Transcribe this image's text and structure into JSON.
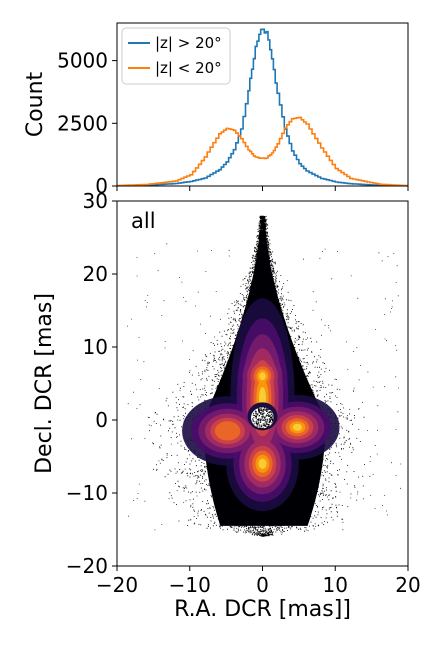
{
  "chart_data": [
    {
      "type": "line",
      "panel": "top",
      "ylabel": "Count",
      "ylim": [
        0,
        6500
      ],
      "xlim": [
        -20,
        20
      ],
      "yticks": [
        0,
        2500,
        5000
      ],
      "ytick_labels": [
        "0",
        "2500",
        "5000"
      ],
      "grid": false,
      "legend_position": "top-left",
      "x": [
        -20,
        -16,
        -12,
        -10,
        -8,
        -6,
        -5,
        -4,
        -3,
        -2,
        -1.5,
        -1,
        -0.5,
        0,
        0.5,
        1,
        1.5,
        2,
        3,
        4,
        5,
        6,
        8,
        10,
        12,
        16,
        20
      ],
      "series": [
        {
          "name": "|z| > 20°",
          "color": "#1f77b4",
          "values": [
            0,
            30,
            100,
            180,
            320,
            650,
            950,
            1450,
            2300,
            3800,
            4700,
            5500,
            6100,
            6250,
            6100,
            5500,
            4600,
            3700,
            2250,
            1400,
            900,
            600,
            300,
            160,
            90,
            25,
            0
          ]
        },
        {
          "name": "|z| < 20°",
          "color": "#ff7f0e",
          "values": [
            20,
            60,
            200,
            450,
            1150,
            2100,
            2280,
            2200,
            1900,
            1450,
            1280,
            1150,
            1120,
            1100,
            1120,
            1250,
            1400,
            1700,
            2300,
            2650,
            2750,
            2500,
            1500,
            700,
            300,
            70,
            10
          ]
        }
      ]
    },
    {
      "type": "heatmap",
      "panel": "bottom",
      "annotation": "all",
      "xlabel": "R.A. DCR [mas]]",
      "ylabel": "Decl. DCR [mas]",
      "xlim": [
        -20,
        20
      ],
      "ylim": [
        -20,
        30
      ],
      "xticks": [
        -20,
        -10,
        0,
        10,
        20
      ],
      "xtick_labels": [
        "−20",
        "−10",
        "0",
        "10",
        "20"
      ],
      "yticks": [
        -20,
        -10,
        0,
        10,
        20,
        30
      ],
      "ytick_labels": [
        "−20",
        "−10",
        "0",
        "10",
        "20",
        "30"
      ],
      "colormap": "inferno",
      "density_peaks": [
        {
          "x": 0,
          "y": 6,
          "weight": 0.55
        },
        {
          "x": 0,
          "y": -6,
          "weight": 1.0
        },
        {
          "x": 5,
          "y": -1,
          "weight": 0.9
        },
        {
          "x": -5,
          "y": -1.5,
          "weight": 0.6
        },
        {
          "x": 0,
          "y": 0,
          "weight": 0.0
        }
      ]
    }
  ]
}
